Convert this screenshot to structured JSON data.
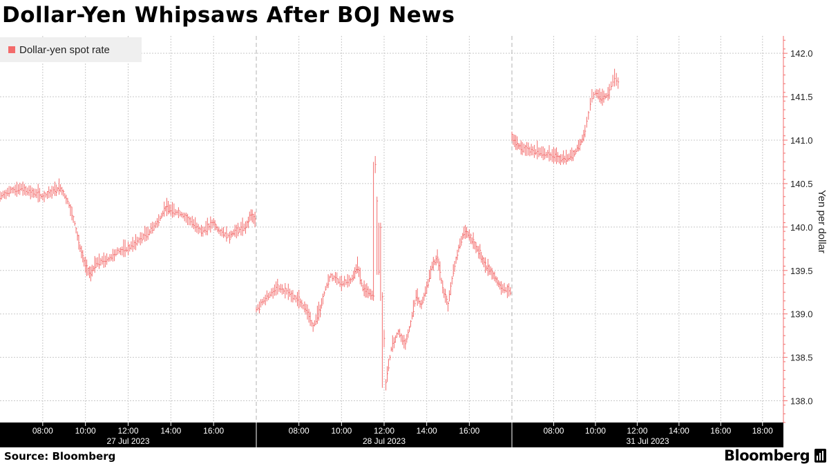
{
  "title": "Dollar-Yen Whipsaws After BOJ News",
  "source": "Source: Bloomberg",
  "brand": "Bloomberg",
  "colors": {
    "series": "#f36b6b",
    "axis_band": "#000000",
    "grid": "#c8c8c8",
    "legend_bg": "#efefef"
  },
  "legend": {
    "label": "Dollar-yen spot rate",
    "position": "top-left"
  },
  "chart_data": {
    "type": "bar",
    "subtype": "ohlc-intraday",
    "title": "Dollar-Yen Whipsaws After BOJ News",
    "ylabel": "Yen per dollar",
    "y_axis_side": "right",
    "ylim": [
      137.75,
      142.2
    ],
    "yticks": [
      "142.0",
      "141.5",
      "141.0",
      "140.5",
      "140.0",
      "139.5",
      "139.0",
      "138.5",
      "138.0"
    ],
    "grid": true,
    "panels": [
      {
        "date": "27 Jul 2023",
        "x_range": [
          "06:00",
          "18:00"
        ],
        "tick_labels": [
          "08:00",
          "10:00",
          "12:00",
          "14:00",
          "16:00"
        ],
        "series": [
          {
            "name": "Dollar-yen spot rate",
            "points": [
              [
                "06:00",
                140.35
              ],
              [
                "06:30",
                140.42
              ],
              [
                "07:00",
                140.45
              ],
              [
                "07:30",
                140.4
              ],
              [
                "08:00",
                140.35
              ],
              [
                "08:30",
                140.42
              ],
              [
                "08:50",
                140.46
              ],
              [
                "09:10",
                140.3
              ],
              [
                "09:30",
                140.05
              ],
              [
                "09:45",
                139.75
              ],
              [
                "10:00",
                139.55
              ],
              [
                "10:15",
                139.45
              ],
              [
                "10:30",
                139.6
              ],
              [
                "11:00",
                139.62
              ],
              [
                "11:30",
                139.72
              ],
              [
                "12:00",
                139.75
              ],
              [
                "12:30",
                139.85
              ],
              [
                "13:00",
                139.95
              ],
              [
                "13:30",
                140.1
              ],
              [
                "13:45",
                140.22
              ],
              [
                "14:00",
                140.2
              ],
              [
                "14:30",
                140.15
              ],
              [
                "15:00",
                140.05
              ],
              [
                "15:30",
                139.95
              ],
              [
                "16:00",
                140.05
              ],
              [
                "16:15",
                139.95
              ],
              [
                "16:45",
                139.9
              ],
              [
                "17:00",
                139.95
              ],
              [
                "17:30",
                140.0
              ],
              [
                "17:45",
                140.15
              ],
              [
                "18:00",
                140.05
              ]
            ]
          }
        ]
      },
      {
        "date": "28 Jul 2023",
        "x_range": [
          "06:00",
          "18:00"
        ],
        "tick_labels": [
          "08:00",
          "10:00",
          "12:00",
          "14:00",
          "16:00"
        ],
        "series": [
          {
            "name": "Dollar-yen spot rate",
            "points": [
              [
                "06:00",
                139.05
              ],
              [
                "06:30",
                139.2
              ],
              [
                "07:00",
                139.3
              ],
              [
                "07:30",
                139.25
              ],
              [
                "08:00",
                139.15
              ],
              [
                "08:20",
                139.05
              ],
              [
                "08:40",
                138.85
              ],
              [
                "09:00",
                139.05
              ],
              [
                "09:15",
                139.3
              ],
              [
                "09:30",
                139.45
              ],
              [
                "10:00",
                139.35
              ],
              [
                "10:30",
                139.4
              ],
              [
                "10:45",
                139.55
              ],
              [
                "11:00",
                139.3
              ],
              [
                "11:15",
                139.25
              ],
              [
                "11:30",
                139.2
              ],
              [
                "11:35",
                140.7
              ],
              [
                "11:40",
                140.3
              ],
              [
                "11:45",
                139.5
              ],
              [
                "11:50",
                140.0
              ],
              [
                "11:55",
                139.2
              ],
              [
                "12:05",
                138.2
              ],
              [
                "12:20",
                138.6
              ],
              [
                "12:40",
                138.8
              ],
              [
                "13:00",
                138.65
              ],
              [
                "13:15",
                138.9
              ],
              [
                "13:30",
                139.2
              ],
              [
                "13:45",
                139.1
              ],
              [
                "14:00",
                139.3
              ],
              [
                "14:15",
                139.55
              ],
              [
                "14:30",
                139.65
              ],
              [
                "14:45",
                139.3
              ],
              [
                "15:00",
                139.1
              ],
              [
                "15:15",
                139.5
              ],
              [
                "15:30",
                139.75
              ],
              [
                "15:45",
                139.95
              ],
              [
                "16:00",
                139.9
              ],
              [
                "16:15",
                139.8
              ],
              [
                "16:30",
                139.7
              ],
              [
                "16:45",
                139.55
              ],
              [
                "17:00",
                139.5
              ],
              [
                "17:15",
                139.4
              ],
              [
                "17:30",
                139.3
              ],
              [
                "18:00",
                139.25
              ]
            ]
          }
        ]
      },
      {
        "date": "31 Jul 2023",
        "x_range": [
          "06:00",
          "19:00"
        ],
        "tick_labels": [
          "08:00",
          "10:00",
          "12:00",
          "14:00",
          "16:00",
          "18:00"
        ],
        "series": [
          {
            "name": "Dollar-yen spot rate",
            "points": [
              [
                "06:00",
                141.05
              ],
              [
                "06:15",
                140.95
              ],
              [
                "06:30",
                140.9
              ],
              [
                "07:00",
                140.88
              ],
              [
                "07:30",
                140.85
              ],
              [
                "08:00",
                140.82
              ],
              [
                "08:20",
                140.78
              ],
              [
                "08:40",
                140.8
              ],
              [
                "09:00",
                140.85
              ],
              [
                "09:15",
                140.95
              ],
              [
                "09:30",
                141.1
              ],
              [
                "09:40",
                141.3
              ],
              [
                "09:50",
                141.5
              ],
              [
                "10:00",
                141.55
              ],
              [
                "10:20",
                141.48
              ],
              [
                "10:40",
                141.55
              ],
              [
                "10:50",
                141.7
              ],
              [
                "11:00",
                141.7
              ],
              [
                "11:10",
                141.65
              ]
            ]
          }
        ]
      }
    ]
  }
}
